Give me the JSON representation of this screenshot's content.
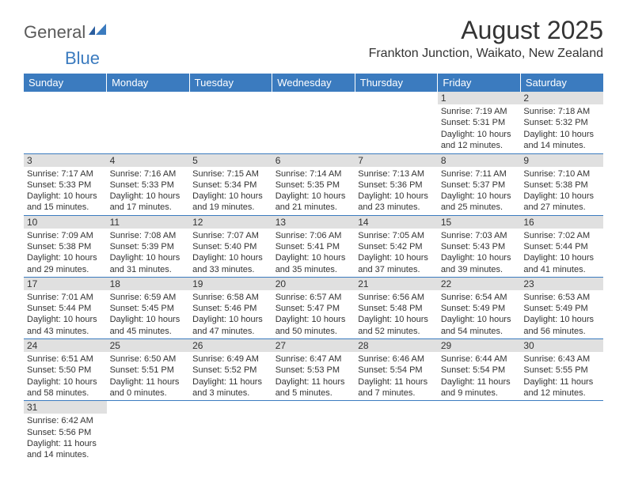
{
  "logo": {
    "text1": "General",
    "text2": "Blue"
  },
  "title": "August 2025",
  "location": "Frankton Junction, Waikato, New Zealand",
  "header_bg": "#3b7bbf",
  "header_fg": "#ffffff",
  "daynum_bg": "#e0e0e0",
  "border_color": "#3b7bbf",
  "days": [
    "Sunday",
    "Monday",
    "Tuesday",
    "Wednesday",
    "Thursday",
    "Friday",
    "Saturday"
  ],
  "weeks": [
    [
      null,
      null,
      null,
      null,
      null,
      {
        "n": "1",
        "sr": "Sunrise: 7:19 AM",
        "ss": "Sunset: 5:31 PM",
        "dl": "Daylight: 10 hours and 12 minutes."
      },
      {
        "n": "2",
        "sr": "Sunrise: 7:18 AM",
        "ss": "Sunset: 5:32 PM",
        "dl": "Daylight: 10 hours and 14 minutes."
      }
    ],
    [
      {
        "n": "3",
        "sr": "Sunrise: 7:17 AM",
        "ss": "Sunset: 5:33 PM",
        "dl": "Daylight: 10 hours and 15 minutes."
      },
      {
        "n": "4",
        "sr": "Sunrise: 7:16 AM",
        "ss": "Sunset: 5:33 PM",
        "dl": "Daylight: 10 hours and 17 minutes."
      },
      {
        "n": "5",
        "sr": "Sunrise: 7:15 AM",
        "ss": "Sunset: 5:34 PM",
        "dl": "Daylight: 10 hours and 19 minutes."
      },
      {
        "n": "6",
        "sr": "Sunrise: 7:14 AM",
        "ss": "Sunset: 5:35 PM",
        "dl": "Daylight: 10 hours and 21 minutes."
      },
      {
        "n": "7",
        "sr": "Sunrise: 7:13 AM",
        "ss": "Sunset: 5:36 PM",
        "dl": "Daylight: 10 hours and 23 minutes."
      },
      {
        "n": "8",
        "sr": "Sunrise: 7:11 AM",
        "ss": "Sunset: 5:37 PM",
        "dl": "Daylight: 10 hours and 25 minutes."
      },
      {
        "n": "9",
        "sr": "Sunrise: 7:10 AM",
        "ss": "Sunset: 5:38 PM",
        "dl": "Daylight: 10 hours and 27 minutes."
      }
    ],
    [
      {
        "n": "10",
        "sr": "Sunrise: 7:09 AM",
        "ss": "Sunset: 5:38 PM",
        "dl": "Daylight: 10 hours and 29 minutes."
      },
      {
        "n": "11",
        "sr": "Sunrise: 7:08 AM",
        "ss": "Sunset: 5:39 PM",
        "dl": "Daylight: 10 hours and 31 minutes."
      },
      {
        "n": "12",
        "sr": "Sunrise: 7:07 AM",
        "ss": "Sunset: 5:40 PM",
        "dl": "Daylight: 10 hours and 33 minutes."
      },
      {
        "n": "13",
        "sr": "Sunrise: 7:06 AM",
        "ss": "Sunset: 5:41 PM",
        "dl": "Daylight: 10 hours and 35 minutes."
      },
      {
        "n": "14",
        "sr": "Sunrise: 7:05 AM",
        "ss": "Sunset: 5:42 PM",
        "dl": "Daylight: 10 hours and 37 minutes."
      },
      {
        "n": "15",
        "sr": "Sunrise: 7:03 AM",
        "ss": "Sunset: 5:43 PM",
        "dl": "Daylight: 10 hours and 39 minutes."
      },
      {
        "n": "16",
        "sr": "Sunrise: 7:02 AM",
        "ss": "Sunset: 5:44 PM",
        "dl": "Daylight: 10 hours and 41 minutes."
      }
    ],
    [
      {
        "n": "17",
        "sr": "Sunrise: 7:01 AM",
        "ss": "Sunset: 5:44 PM",
        "dl": "Daylight: 10 hours and 43 minutes."
      },
      {
        "n": "18",
        "sr": "Sunrise: 6:59 AM",
        "ss": "Sunset: 5:45 PM",
        "dl": "Daylight: 10 hours and 45 minutes."
      },
      {
        "n": "19",
        "sr": "Sunrise: 6:58 AM",
        "ss": "Sunset: 5:46 PM",
        "dl": "Daylight: 10 hours and 47 minutes."
      },
      {
        "n": "20",
        "sr": "Sunrise: 6:57 AM",
        "ss": "Sunset: 5:47 PM",
        "dl": "Daylight: 10 hours and 50 minutes."
      },
      {
        "n": "21",
        "sr": "Sunrise: 6:56 AM",
        "ss": "Sunset: 5:48 PM",
        "dl": "Daylight: 10 hours and 52 minutes."
      },
      {
        "n": "22",
        "sr": "Sunrise: 6:54 AM",
        "ss": "Sunset: 5:49 PM",
        "dl": "Daylight: 10 hours and 54 minutes."
      },
      {
        "n": "23",
        "sr": "Sunrise: 6:53 AM",
        "ss": "Sunset: 5:49 PM",
        "dl": "Daylight: 10 hours and 56 minutes."
      }
    ],
    [
      {
        "n": "24",
        "sr": "Sunrise: 6:51 AM",
        "ss": "Sunset: 5:50 PM",
        "dl": "Daylight: 10 hours and 58 minutes."
      },
      {
        "n": "25",
        "sr": "Sunrise: 6:50 AM",
        "ss": "Sunset: 5:51 PM",
        "dl": "Daylight: 11 hours and 0 minutes."
      },
      {
        "n": "26",
        "sr": "Sunrise: 6:49 AM",
        "ss": "Sunset: 5:52 PM",
        "dl": "Daylight: 11 hours and 3 minutes."
      },
      {
        "n": "27",
        "sr": "Sunrise: 6:47 AM",
        "ss": "Sunset: 5:53 PM",
        "dl": "Daylight: 11 hours and 5 minutes."
      },
      {
        "n": "28",
        "sr": "Sunrise: 6:46 AM",
        "ss": "Sunset: 5:54 PM",
        "dl": "Daylight: 11 hours and 7 minutes."
      },
      {
        "n": "29",
        "sr": "Sunrise: 6:44 AM",
        "ss": "Sunset: 5:54 PM",
        "dl": "Daylight: 11 hours and 9 minutes."
      },
      {
        "n": "30",
        "sr": "Sunrise: 6:43 AM",
        "ss": "Sunset: 5:55 PM",
        "dl": "Daylight: 11 hours and 12 minutes."
      }
    ],
    [
      {
        "n": "31",
        "sr": "Sunrise: 6:42 AM",
        "ss": "Sunset: 5:56 PM",
        "dl": "Daylight: 11 hours and 14 minutes."
      },
      null,
      null,
      null,
      null,
      null,
      null
    ]
  ]
}
